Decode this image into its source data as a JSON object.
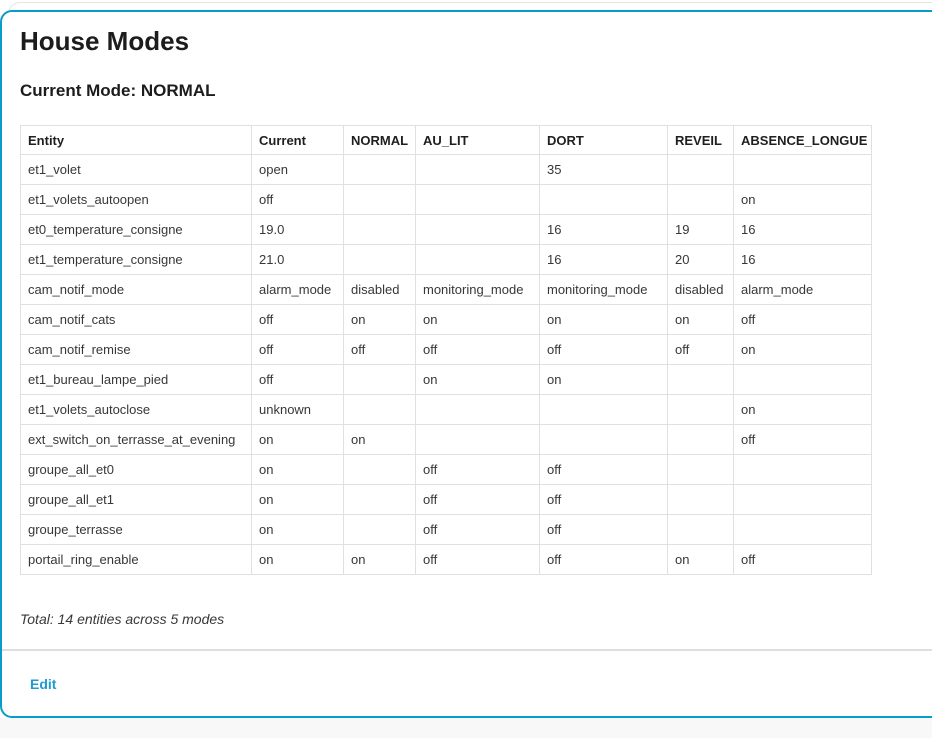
{
  "card": {
    "title": "House Modes",
    "current_mode_prefix": "Current Mode:",
    "current_mode": "NORMAL"
  },
  "table": {
    "columns": [
      "Entity",
      "Current",
      "NORMAL",
      "AU_LIT",
      "DORT",
      "REVEIL",
      "ABSENCE_LONGUE"
    ],
    "rows": [
      [
        "et1_volet",
        "open",
        "",
        "",
        "35",
        "",
        ""
      ],
      [
        "et1_volets_autoopen",
        "off",
        "",
        "",
        "",
        "",
        "on"
      ],
      [
        "et0_temperature_consigne",
        "19.0",
        "",
        "",
        "16",
        "19",
        "16"
      ],
      [
        "et1_temperature_consigne",
        "21.0",
        "",
        "",
        "16",
        "20",
        "16"
      ],
      [
        "cam_notif_mode",
        "alarm_mode",
        "disabled",
        "monitoring_mode",
        "monitoring_mode",
        "disabled",
        "alarm_mode"
      ],
      [
        "cam_notif_cats",
        "off",
        "on",
        "on",
        "on",
        "on",
        "off"
      ],
      [
        "cam_notif_remise",
        "off",
        "off",
        "off",
        "off",
        "off",
        "on"
      ],
      [
        "et1_bureau_lampe_pied",
        "off",
        "",
        "on",
        "on",
        "",
        ""
      ],
      [
        "et1_volets_autoclose",
        "unknown",
        "",
        "",
        "",
        "",
        "on"
      ],
      [
        "ext_switch_on_terrasse_at_evening",
        "on",
        "on",
        "",
        "",
        "",
        "off"
      ],
      [
        "groupe_all_et0",
        "on",
        "",
        "off",
        "off",
        "",
        ""
      ],
      [
        "groupe_all_et1",
        "on",
        "",
        "off",
        "off",
        "",
        ""
      ],
      [
        "groupe_terrasse",
        "on",
        "",
        "off",
        "off",
        "",
        ""
      ],
      [
        "portail_ring_enable",
        "on",
        "on",
        "off",
        "off",
        "on",
        "off"
      ]
    ]
  },
  "summary": "Total: 14 entities across 5 modes",
  "actions": {
    "edit": "Edit"
  },
  "colors": {
    "accent": "#0a9cc9",
    "link": "#1f9bcf",
    "grid": "#e0e0e0"
  }
}
